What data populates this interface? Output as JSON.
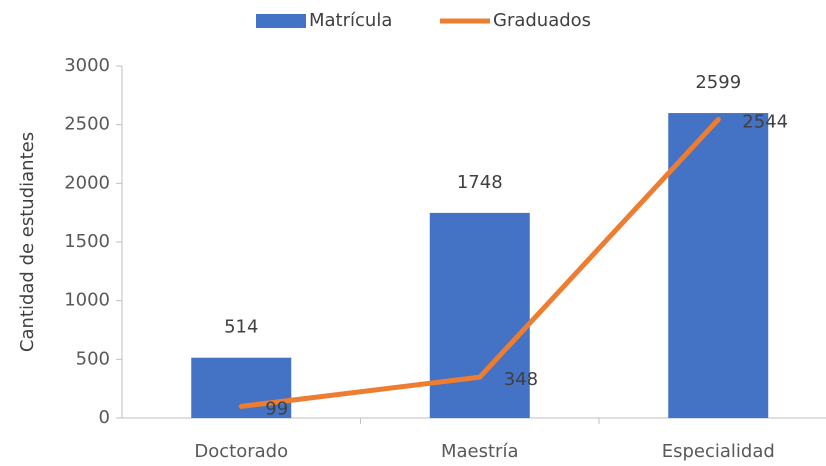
{
  "chart_data": {
    "type": "combo",
    "y_label": "Cantidad de estudiantes",
    "categories": [
      "Doctorado",
      "Maestría",
      "Especialidad"
    ],
    "series": [
      {
        "name": "Matrícula",
        "type": "bar",
        "color": "#4472c4",
        "values": [
          514,
          1748,
          2599
        ]
      },
      {
        "name": "Graduados",
        "type": "line",
        "color": "#ed7d31",
        "values": [
          99,
          348,
          2544
        ]
      }
    ],
    "ylim": [
      0,
      3000
    ],
    "yticks": [
      0,
      500,
      1000,
      1500,
      2000,
      2500,
      3000
    ],
    "grid": false,
    "legend": "top"
  }
}
